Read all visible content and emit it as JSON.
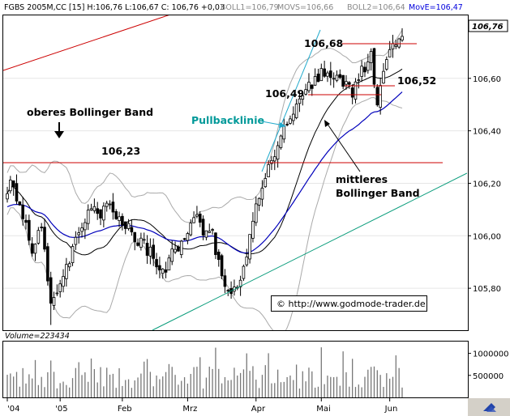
{
  "header": {
    "symbol_info": "FGBS 2005M,CC [15] H:106,76 L:106,67 C: 106,76 +0,03",
    "boll1": "BOLL1=106,79",
    "movs": "MOVS=106,66",
    "boll2": "BOLL2=106,64",
    "move": "MovE=106,47"
  },
  "last_price_label": "106,76",
  "volume_label": "Volume=223434",
  "annotations": {
    "upper_band": "oberes Bollinger Band",
    "level_106_23": "106,23",
    "pullback": "Pullbacklinie",
    "level_106_49": "106,49",
    "level_106_68": "106,68",
    "level_106_52": "106,52",
    "middle_band_1": "mittleres",
    "middle_band_2": "Bollinger Band",
    "copyright": "© http://www.godmode-trader.de"
  },
  "colors": {
    "resistance": "#cc0000",
    "trend": "#009977",
    "pullback": "#22aacc",
    "ema": "#0000bb",
    "mid_band": "#000000",
    "outer_band": "#aaaaaa",
    "pullback_text": "#009999",
    "move_text": "#0000dd",
    "volume": "#777777"
  },
  "chart_data": {
    "type": "candlestick",
    "ylim": [
      105.64,
      106.84
    ],
    "y_ticks": [
      {
        "v": 106.6,
        "label": "106,60"
      },
      {
        "v": 106.4,
        "label": "106,40"
      },
      {
        "v": 106.2,
        "label": "106,20"
      },
      {
        "v": 106.0,
        "label": "106,00"
      },
      {
        "v": 105.8,
        "label": "105,80"
      }
    ],
    "x_labels": [
      "'04",
      "'05",
      "Feb",
      "Mrz",
      "Apr",
      "Mai",
      "Jun"
    ],
    "x_label_pos": [
      0,
      17,
      37,
      58,
      80,
      101,
      123
    ],
    "n_bars": 128,
    "anchors": [
      [
        0,
        106.18
      ],
      [
        1,
        106.23
      ],
      [
        4,
        106.12
      ],
      [
        8,
        105.95
      ],
      [
        11,
        106.05
      ],
      [
        14,
        105.72
      ],
      [
        16,
        105.78
      ],
      [
        18,
        105.85
      ],
      [
        21,
        105.95
      ],
      [
        24,
        106.05
      ],
      [
        27,
        106.1
      ],
      [
        30,
        106.08
      ],
      [
        33,
        106.12
      ],
      [
        37,
        106.05
      ],
      [
        41,
        106.0
      ],
      [
        45,
        105.95
      ],
      [
        48,
        105.9
      ],
      [
        51,
        105.88
      ],
      [
        54,
        105.95
      ],
      [
        57,
        106.0
      ],
      [
        60,
        106.08
      ],
      [
        63,
        106.02
      ],
      [
        66,
        106.0
      ],
      [
        69,
        105.85
      ],
      [
        72,
        105.78
      ],
      [
        75,
        105.82
      ],
      [
        78,
        106.0
      ],
      [
        81,
        106.15
      ],
      [
        84,
        106.25
      ],
      [
        87,
        106.35
      ],
      [
        90,
        106.42
      ],
      [
        93,
        106.49
      ],
      [
        96,
        106.55
      ],
      [
        99,
        106.6
      ],
      [
        102,
        106.63
      ],
      [
        105,
        106.6
      ],
      [
        108,
        106.58
      ],
      [
        111,
        106.55
      ],
      [
        114,
        106.63
      ],
      [
        117,
        106.68
      ],
      [
        119,
        106.52
      ],
      [
        121,
        106.62
      ],
      [
        123,
        106.7
      ],
      [
        125,
        106.72
      ],
      [
        127,
        106.76
      ]
    ],
    "last_close": 106.76,
    "levels": [
      106.23,
      106.49,
      106.68,
      106.52
    ],
    "volume_ticks": [
      {
        "v": 1000000,
        "label": "1000000"
      },
      {
        "v": 500000,
        "label": "500000"
      }
    ],
    "volume_max": 1250000,
    "volume_current": 223434
  }
}
